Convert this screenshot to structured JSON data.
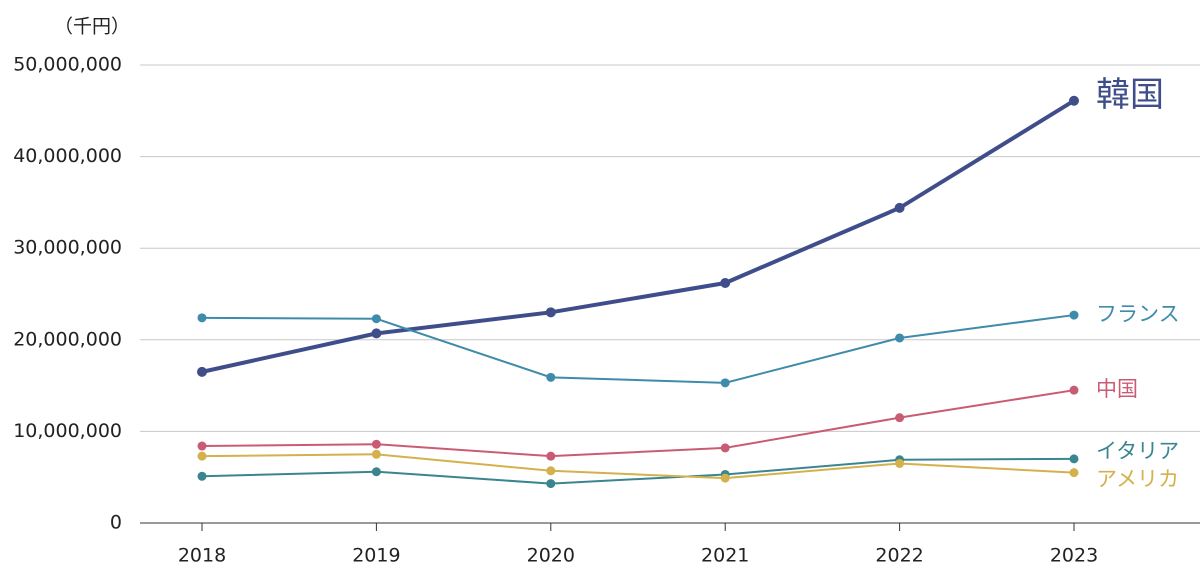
{
  "chart_data": {
    "type": "line",
    "unit_label": "（千円）",
    "categories": [
      "2018",
      "2019",
      "2020",
      "2021",
      "2022",
      "2023"
    ],
    "series": [
      {
        "name": "韓国",
        "color": "#3f4e8a",
        "values": [
          16500000,
          20700000,
          23000000,
          26200000,
          34400000,
          46100000
        ]
      },
      {
        "name": "フランス",
        "color": "#3f8bab",
        "values": [
          22400000,
          22300000,
          15900000,
          15300000,
          20200000,
          22700000
        ]
      },
      {
        "name": "中国",
        "color": "#c95c74",
        "values": [
          8400000,
          8600000,
          7300000,
          8200000,
          11500000,
          14500000
        ]
      },
      {
        "name": "イタリア",
        "color": "#3b8590",
        "values": [
          5100000,
          5600000,
          4300000,
          5300000,
          6900000,
          7000000
        ]
      },
      {
        "name": "アメリカ",
        "color": "#d4b14c",
        "values": [
          7300000,
          7500000,
          5700000,
          4900000,
          6500000,
          5500000
        ]
      }
    ],
    "ylim": [
      0,
      50000000
    ],
    "yticks": [
      0,
      {
        "value": 10000000,
        "label": "10,000,000"
      },
      {
        "value": 20000000,
        "label": "20,000,000"
      },
      {
        "value": 30000000,
        "label": "30,000,000"
      },
      {
        "value": 40000000,
        "label": "40,000,000"
      },
      {
        "value": 50000000,
        "label": "50,000,000"
      }
    ],
    "grid": true
  }
}
